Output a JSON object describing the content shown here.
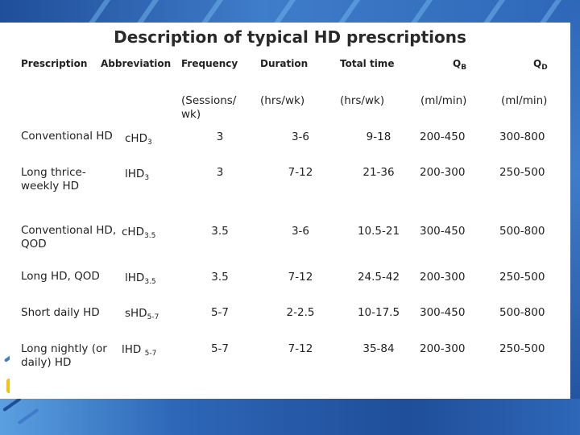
{
  "title": "Description of typical HD prescriptions",
  "headers": {
    "prescription": "Prescription",
    "abbreviation": "Abbreviation",
    "frequency": "Frequency",
    "duration": "Duration",
    "total_time": "Total time",
    "qb_letter": "Q",
    "qb_sub": "B",
    "qd_letter": "Q",
    "qd_sub": "D"
  },
  "units": {
    "frequency": "(Sessions/ wk)",
    "duration": "(hrs/wk)",
    "total_time": "(hrs/wk)",
    "qb": "(ml/min)",
    "qd": "(ml/min)"
  },
  "rows": [
    {
      "prescription": "Conventional HD",
      "abbr_main": "cHD",
      "abbr_sub": "3",
      "frequency": "3",
      "duration": "3-6",
      "total_time": "9-18",
      "qb": "200-450",
      "qd": "300-800"
    },
    {
      "prescription": "Long thrice-weekly HD",
      "abbr_main": "lHD",
      "abbr_sub": "3",
      "frequency": "3",
      "duration": "7-12",
      "total_time": "21-36",
      "qb": "200-300",
      "qd": "250-500"
    },
    {
      "prescription": "Conventional HD, QOD",
      "abbr_main": "cHD",
      "abbr_sub": "3.5",
      "frequency": "3.5",
      "duration": "3-6",
      "total_time": "10.5-21",
      "qb": "300-450",
      "qd": "500-800"
    },
    {
      "prescription": "Long HD, QOD",
      "abbr_main": "lHD",
      "abbr_sub": "3.5",
      "frequency": "3.5",
      "duration": "7-12",
      "total_time": "24.5-42",
      "qb": "200-300",
      "qd": "250-500"
    },
    {
      "prescription": "Short daily HD",
      "abbr_main": "sHD",
      "abbr_sub": "5-7",
      "frequency": "5-7",
      "duration": "2-2.5",
      "total_time": "10-17.5",
      "qb": "300-450",
      "qd": "500-800"
    },
    {
      "prescription": "Long nightly (or daily) HD",
      "abbr_main": "lHD ",
      "abbr_sub": "5-7",
      "frequency": "5-7",
      "duration": "7-12",
      "total_time": "35-84",
      "qb": "200-300",
      "qd": "250-500"
    }
  ]
}
